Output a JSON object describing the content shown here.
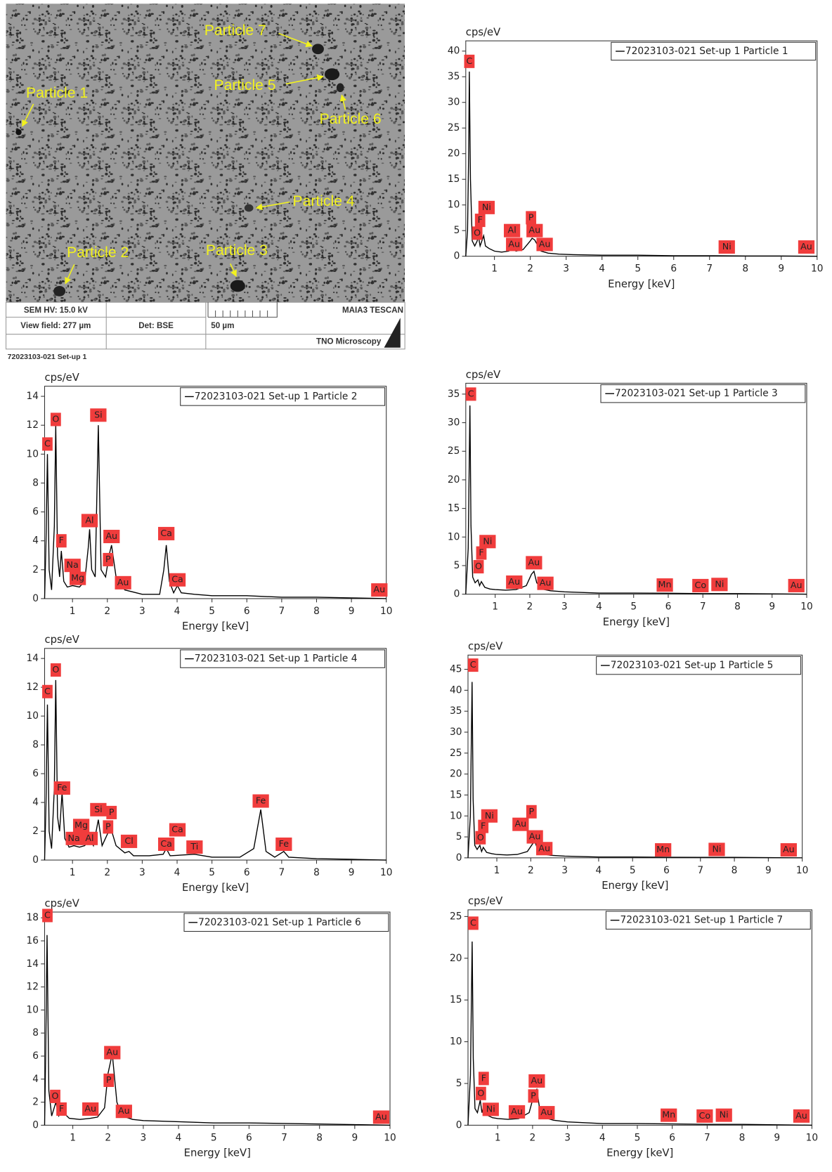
{
  "image": {
    "labels": [
      "Particle 1",
      "Particle 2",
      "Particle 3",
      "Particle 4",
      "Particle 5",
      "Particle 6",
      "Particle 7"
    ],
    "info": {
      "hv": "SEM HV: 15.0 kV",
      "view_field": "View field: 277 µm",
      "detector": "Det: BSE",
      "scale": "50 µm",
      "instrument": "MAIA3 TESCAN",
      "lab": "TNO Microscopy"
    },
    "caption": "72023103-021 Set-up 1"
  },
  "chart_data": [
    {
      "type": "line",
      "ylabel": "cps/eV",
      "xlabel": "Energy [keV]",
      "legend": "upper right",
      "annotation_color": "#f03c3c",
      "xlim": [
        0.2,
        10
      ],
      "xticks": [
        1,
        2,
        3,
        4,
        5,
        6,
        7,
        8,
        9,
        10
      ],
      "ylim": [
        0,
        42
      ],
      "yticks": [
        0,
        5,
        10,
        15,
        20,
        25,
        30,
        35,
        40
      ],
      "x": [
        0.2,
        0.25,
        0.28,
        0.3,
        0.33,
        0.38,
        0.45,
        0.52,
        0.55,
        0.6,
        0.65,
        0.7,
        0.75,
        0.85,
        1.0,
        1.2,
        1.4,
        1.49,
        1.6,
        1.8,
        2.0,
        2.05,
        2.12,
        2.2,
        2.3,
        2.5,
        2.8,
        3.2,
        4,
        5,
        6,
        7,
        8,
        9,
        10
      ],
      "series": [
        {
          "name": "72023103-021 Set-up 1 Particle 1",
          "color": "#000000",
          "values": [
            0,
            5,
            20,
            36,
            15,
            3,
            2,
            3,
            4,
            2,
            3,
            4,
            2,
            1.5,
            1,
            0.8,
            1,
            1.6,
            1,
            1.3,
            3,
            3.5,
            3.2,
            2.2,
            1,
            0.6,
            0.4,
            0.3,
            0.2,
            0.2,
            0.1,
            0.1,
            0.05,
            0.05,
            0
          ]
        }
      ],
      "annotations": [
        {
          "label": "C",
          "x": 0.3,
          "y": 38
        },
        {
          "label": "O",
          "x": 0.52,
          "y": 4.5
        },
        {
          "label": "F",
          "x": 0.6,
          "y": 7
        },
        {
          "label": "Ni",
          "x": 0.78,
          "y": 9.5
        },
        {
          "label": "Al",
          "x": 1.49,
          "y": 5
        },
        {
          "label": "Au",
          "x": 1.55,
          "y": 2.3
        },
        {
          "label": "P",
          "x": 2.02,
          "y": 7.5
        },
        {
          "label": "Au",
          "x": 2.12,
          "y": 5
        },
        {
          "label": "Au",
          "x": 2.4,
          "y": 2.3
        },
        {
          "label": "Ni",
          "x": 7.48,
          "y": 1.8
        },
        {
          "label": "Au",
          "x": 9.7,
          "y": 1.8
        }
      ]
    },
    {
      "type": "line",
      "ylabel": "cps/eV",
      "xlabel": "Energy [keV]",
      "legend": "upper right",
      "annotation_color": "#f03c3c",
      "xlim": [
        0.2,
        10
      ],
      "xticks": [
        1,
        2,
        3,
        4,
        5,
        6,
        7,
        8,
        9,
        10
      ],
      "ylim": [
        0,
        14.7
      ],
      "yticks": [
        0,
        2,
        4,
        6,
        8,
        10,
        12,
        14
      ],
      "x": [
        0.2,
        0.24,
        0.28,
        0.33,
        0.4,
        0.48,
        0.52,
        0.57,
        0.63,
        0.68,
        0.75,
        0.85,
        1.0,
        1.2,
        1.35,
        1.45,
        1.49,
        1.55,
        1.65,
        1.74,
        1.82,
        1.95,
        2.05,
        2.12,
        2.25,
        2.5,
        3.0,
        3.5,
        3.62,
        3.69,
        3.78,
        3.9,
        4.01,
        4.12,
        4.5,
        5,
        6,
        7,
        8,
        9,
        10
      ],
      "series": [
        {
          "name": "72023103-021 Set-up 1 Particle 2",
          "color": "#000000",
          "values": [
            0,
            4,
            10,
            2,
            0.6,
            5,
            12,
            3,
            1.5,
            3.3,
            1.2,
            0.8,
            0.9,
            0.8,
            1.2,
            3.5,
            4.8,
            2,
            1.5,
            12,
            2,
            1.5,
            3,
            3.7,
            1.5,
            0.6,
            0.3,
            0.3,
            2,
            3.7,
            1.2,
            0.4,
            0.9,
            0.4,
            0.3,
            0.2,
            0.2,
            0.1,
            0.1,
            0.05,
            0
          ]
        }
      ],
      "annotations": [
        {
          "label": "C",
          "x": 0.28,
          "y": 10.7
        },
        {
          "label": "O",
          "x": 0.52,
          "y": 12.4
        },
        {
          "label": "Si",
          "x": 1.74,
          "y": 12.7
        },
        {
          "label": "Al",
          "x": 1.49,
          "y": 5.4
        },
        {
          "label": "F",
          "x": 0.68,
          "y": 4
        },
        {
          "label": "Na",
          "x": 1.0,
          "y": 2.3
        },
        {
          "label": "Mg",
          "x": 1.15,
          "y": 1.4
        },
        {
          "label": "Au",
          "x": 2.12,
          "y": 4.3
        },
        {
          "label": "P",
          "x": 2.02,
          "y": 2.7
        },
        {
          "label": "Au",
          "x": 2.45,
          "y": 1.1
        },
        {
          "label": "Ca",
          "x": 3.69,
          "y": 4.5
        },
        {
          "label": "Ca",
          "x": 4.01,
          "y": 1.3
        },
        {
          "label": "Au",
          "x": 9.8,
          "y": 0.6
        }
      ]
    },
    {
      "type": "line",
      "ylabel": "cps/eV",
      "xlabel": "Energy [keV]",
      "legend": "upper right",
      "annotation_color": "#f03c3c",
      "xlim": [
        0.15,
        10
      ],
      "xticks": [
        1,
        2,
        3,
        4,
        5,
        6,
        7,
        8,
        9,
        10
      ],
      "ylim": [
        0,
        36.9
      ],
      "yticks": [
        0,
        5,
        10,
        15,
        20,
        25,
        30,
        35
      ],
      "x": [
        0.15,
        0.22,
        0.27,
        0.3,
        0.35,
        0.42,
        0.5,
        0.55,
        0.6,
        0.7,
        0.85,
        1.0,
        1.3,
        1.6,
        1.9,
        2.05,
        2.12,
        2.2,
        2.35,
        2.6,
        3,
        4,
        5,
        6,
        7,
        8,
        9,
        10
      ],
      "series": [
        {
          "name": "72023103-021 Set-up 1 Particle 3",
          "color": "#000000",
          "values": [
            0,
            8,
            33,
            12,
            3,
            2,
            2.5,
            1.5,
            2.2,
            1.2,
            0.9,
            0.8,
            0.7,
            0.8,
            1.5,
            3.5,
            4,
            2,
            0.9,
            0.6,
            0.4,
            0.2,
            0.2,
            0.15,
            0.1,
            0.1,
            0.05,
            0
          ]
        }
      ],
      "annotations": [
        {
          "label": "C",
          "x": 0.3,
          "y": 35
        },
        {
          "label": "Ni",
          "x": 0.78,
          "y": 9.2
        },
        {
          "label": "F",
          "x": 0.6,
          "y": 7.2
        },
        {
          "label": "O",
          "x": 0.52,
          "y": 4.8
        },
        {
          "label": "Au",
          "x": 2.12,
          "y": 5.5
        },
        {
          "label": "Au",
          "x": 1.55,
          "y": 2.1
        },
        {
          "label": "Au",
          "x": 2.45,
          "y": 1.9
        },
        {
          "label": "Mn",
          "x": 5.9,
          "y": 1.6
        },
        {
          "label": "Co",
          "x": 6.93,
          "y": 1.5
        },
        {
          "label": "Ni",
          "x": 7.48,
          "y": 1.7
        },
        {
          "label": "Au",
          "x": 9.7,
          "y": 1.5
        }
      ]
    },
    {
      "type": "line",
      "ylabel": "cps/eV",
      "xlabel": "Energy [keV]",
      "legend": "upper right",
      "annotation_color": "#f03c3c",
      "xlim": [
        0.2,
        10
      ],
      "xticks": [
        1,
        2,
        3,
        4,
        5,
        6,
        7,
        8,
        9,
        10
      ],
      "ylim": [
        0,
        14.7
      ],
      "yticks": [
        0,
        2,
        4,
        6,
        8,
        10,
        12,
        14
      ],
      "x": [
        0.2,
        0.24,
        0.28,
        0.33,
        0.4,
        0.48,
        0.52,
        0.57,
        0.63,
        0.7,
        0.78,
        0.9,
        1.04,
        1.2,
        1.35,
        1.49,
        1.6,
        1.74,
        1.85,
        2.0,
        2.1,
        2.25,
        2.5,
        2.62,
        2.75,
        3.2,
        3.6,
        3.69,
        3.8,
        4.5,
        5,
        5.8,
        6.2,
        6.4,
        6.55,
        6.8,
        7.06,
        7.2,
        8,
        9,
        10
      ],
      "series": [
        {
          "name": "72023103-021 Set-up 1 Particle 4",
          "color": "#000000",
          "values": [
            0,
            4,
            10.8,
            2,
            0.8,
            5,
            12.5,
            3,
            2,
            4.7,
            1.5,
            0.9,
            1,
            0.9,
            1,
            1.5,
            1,
            2.8,
            1,
            1.8,
            2.2,
            1,
            0.5,
            0.6,
            0.3,
            0.3,
            0.4,
            0.8,
            0.3,
            0.4,
            0.2,
            0.2,
            0.8,
            3.5,
            0.6,
            0.2,
            0.6,
            0.2,
            0.1,
            0.05,
            0
          ]
        }
      ],
      "annotations": [
        {
          "label": "C",
          "x": 0.28,
          "y": 11.7
        },
        {
          "label": "O",
          "x": 0.52,
          "y": 13.2
        },
        {
          "label": "Fe",
          "x": 0.7,
          "y": 5
        },
        {
          "label": "Mg",
          "x": 1.25,
          "y": 2.4
        },
        {
          "label": "Na",
          "x": 1.04,
          "y": 1.5
        },
        {
          "label": "Al",
          "x": 1.49,
          "y": 1.5
        },
        {
          "label": "Si",
          "x": 1.74,
          "y": 3.5
        },
        {
          "label": "P",
          "x": 2.12,
          "y": 3.3
        },
        {
          "label": "P",
          "x": 2.02,
          "y": 2.3
        },
        {
          "label": "Cl",
          "x": 2.62,
          "y": 1.3
        },
        {
          "label": "Ca",
          "x": 3.69,
          "y": 1.1
        },
        {
          "label": "Ca",
          "x": 4.01,
          "y": 2.1
        },
        {
          "label": "Ti",
          "x": 4.5,
          "y": 0.9
        },
        {
          "label": "Fe",
          "x": 6.4,
          "y": 4.1
        },
        {
          "label": "Fe",
          "x": 7.06,
          "y": 1.1
        }
      ]
    },
    {
      "type": "line",
      "ylabel": "cps/eV",
      "xlabel": "Energy [keV]",
      "legend": "upper right",
      "annotation_color": "#f03c3c",
      "xlim": [
        0.15,
        10
      ],
      "xticks": [
        1,
        2,
        3,
        4,
        5,
        6,
        7,
        8,
        9,
        10
      ],
      "ylim": [
        0,
        48.4
      ],
      "yticks": [
        0,
        5,
        10,
        15,
        20,
        25,
        30,
        35,
        40,
        45
      ],
      "x": [
        0.15,
        0.22,
        0.27,
        0.3,
        0.35,
        0.42,
        0.5,
        0.55,
        0.6,
        0.7,
        0.85,
        1.0,
        1.3,
        1.6,
        1.9,
        2.05,
        2.12,
        2.2,
        2.35,
        2.6,
        3,
        4,
        5,
        6,
        7,
        8,
        9,
        10
      ],
      "series": [
        {
          "name": "72023103-021 Set-up 1 Particle 5",
          "color": "#000000",
          "values": [
            0,
            10,
            42,
            14,
            3,
            2,
            3,
            1.5,
            2.5,
            1.3,
            1,
            0.8,
            0.7,
            0.8,
            1.5,
            3.3,
            4,
            2,
            0.9,
            0.6,
            0.4,
            0.2,
            0.2,
            0.15,
            0.1,
            0.1,
            0.05,
            0
          ]
        }
      ],
      "annotations": [
        {
          "label": "C",
          "x": 0.3,
          "y": 46
        },
        {
          "label": "Ni",
          "x": 0.78,
          "y": 10
        },
        {
          "label": "F",
          "x": 0.6,
          "y": 7.5
        },
        {
          "label": "O",
          "x": 0.52,
          "y": 4.8
        },
        {
          "label": "P",
          "x": 2.02,
          "y": 11
        },
        {
          "label": "Au",
          "x": 1.7,
          "y": 8
        },
        {
          "label": "Au",
          "x": 2.12,
          "y": 5
        },
        {
          "label": "Au",
          "x": 2.4,
          "y": 2.2
        },
        {
          "label": "Mn",
          "x": 5.9,
          "y": 1.9
        },
        {
          "label": "Ni",
          "x": 7.48,
          "y": 2
        },
        {
          "label": "Au",
          "x": 9.6,
          "y": 1.9
        }
      ]
    },
    {
      "type": "line",
      "ylabel": "cps/eV",
      "xlabel": "Energy [keV]",
      "legend": "upper right",
      "annotation_color": "#f03c3c",
      "xlim": [
        0.2,
        10
      ],
      "xticks": [
        1,
        2,
        3,
        4,
        5,
        6,
        7,
        8,
        9,
        10
      ],
      "ylim": [
        0,
        18.5
      ],
      "yticks": [
        0,
        2,
        4,
        6,
        8,
        10,
        12,
        14,
        16,
        18
      ],
      "x": [
        0.2,
        0.23,
        0.27,
        0.32,
        0.4,
        0.52,
        0.6,
        0.7,
        0.9,
        1.2,
        1.5,
        1.7,
        1.9,
        2.0,
        2.12,
        2.25,
        2.4,
        2.7,
        3,
        4,
        5,
        6,
        7,
        8,
        9,
        10
      ],
      "series": [
        {
          "name": "72023103-021 Set-up 1 Particle 6",
          "color": "#000000",
          "values": [
            0,
            6,
            16.5,
            3,
            0.8,
            2,
            0.8,
            1.2,
            0.6,
            0.5,
            0.6,
            0.7,
            1.5,
            4.5,
            6.2,
            2,
            0.8,
            0.5,
            0.4,
            0.3,
            0.2,
            0.2,
            0.15,
            0.1,
            0.05,
            0
          ]
        }
      ],
      "annotations": [
        {
          "label": "C",
          "x": 0.28,
          "y": 18.2
        },
        {
          "label": "O",
          "x": 0.5,
          "y": 2.5
        },
        {
          "label": "F",
          "x": 0.68,
          "y": 1.4
        },
        {
          "label": "Au",
          "x": 1.5,
          "y": 1.4
        },
        {
          "label": "Au",
          "x": 2.12,
          "y": 6.3
        },
        {
          "label": "P",
          "x": 2.02,
          "y": 3.9
        },
        {
          "label": "Au",
          "x": 2.45,
          "y": 1.2
        },
        {
          "label": "Au",
          "x": 9.75,
          "y": 0.7
        }
      ]
    },
    {
      "type": "line",
      "ylabel": "cps/eV",
      "xlabel": "Energy [keV]",
      "legend": "upper right",
      "annotation_color": "#f03c3c",
      "xlim": [
        0.15,
        10
      ],
      "xticks": [
        1,
        2,
        3,
        4,
        5,
        6,
        7,
        8,
        9,
        10
      ],
      "ylim": [
        0,
        25.8
      ],
      "yticks": [
        0,
        5,
        10,
        15,
        20,
        25
      ],
      "x": [
        0.15,
        0.22,
        0.27,
        0.3,
        0.35,
        0.42,
        0.5,
        0.55,
        0.6,
        0.7,
        0.85,
        1.0,
        1.3,
        1.6,
        1.9,
        2.05,
        2.12,
        2.2,
        2.35,
        2.6,
        3,
        4,
        5,
        6,
        7,
        8,
        9,
        10
      ],
      "series": [
        {
          "name": "72023103-021 Set-up 1 Particle 7",
          "color": "#000000",
          "values": [
            0,
            6,
            22,
            8,
            2,
            1.5,
            3,
            1.5,
            2.3,
            1.2,
            0.9,
            0.8,
            0.7,
            0.8,
            1.5,
            3.8,
            4.3,
            2,
            0.9,
            0.6,
            0.4,
            0.2,
            0.2,
            0.15,
            0.1,
            0.1,
            0.05,
            0
          ]
        }
      ],
      "annotations": [
        {
          "label": "C",
          "x": 0.3,
          "y": 24.2
        },
        {
          "label": "F",
          "x": 0.6,
          "y": 5.6
        },
        {
          "label": "O",
          "x": 0.52,
          "y": 3.8
        },
        {
          "label": "Ni",
          "x": 0.8,
          "y": 1.9
        },
        {
          "label": "Au",
          "x": 1.55,
          "y": 1.6
        },
        {
          "label": "Au",
          "x": 2.12,
          "y": 5.3
        },
        {
          "label": "P",
          "x": 2.02,
          "y": 3.5
        },
        {
          "label": "Au",
          "x": 2.4,
          "y": 1.5
        },
        {
          "label": "Mn",
          "x": 5.9,
          "y": 1.2
        },
        {
          "label": "Co",
          "x": 6.93,
          "y": 1.1
        },
        {
          "label": "Ni",
          "x": 7.48,
          "y": 1.2
        },
        {
          "label": "Au",
          "x": 9.7,
          "y": 1.1
        }
      ]
    }
  ]
}
